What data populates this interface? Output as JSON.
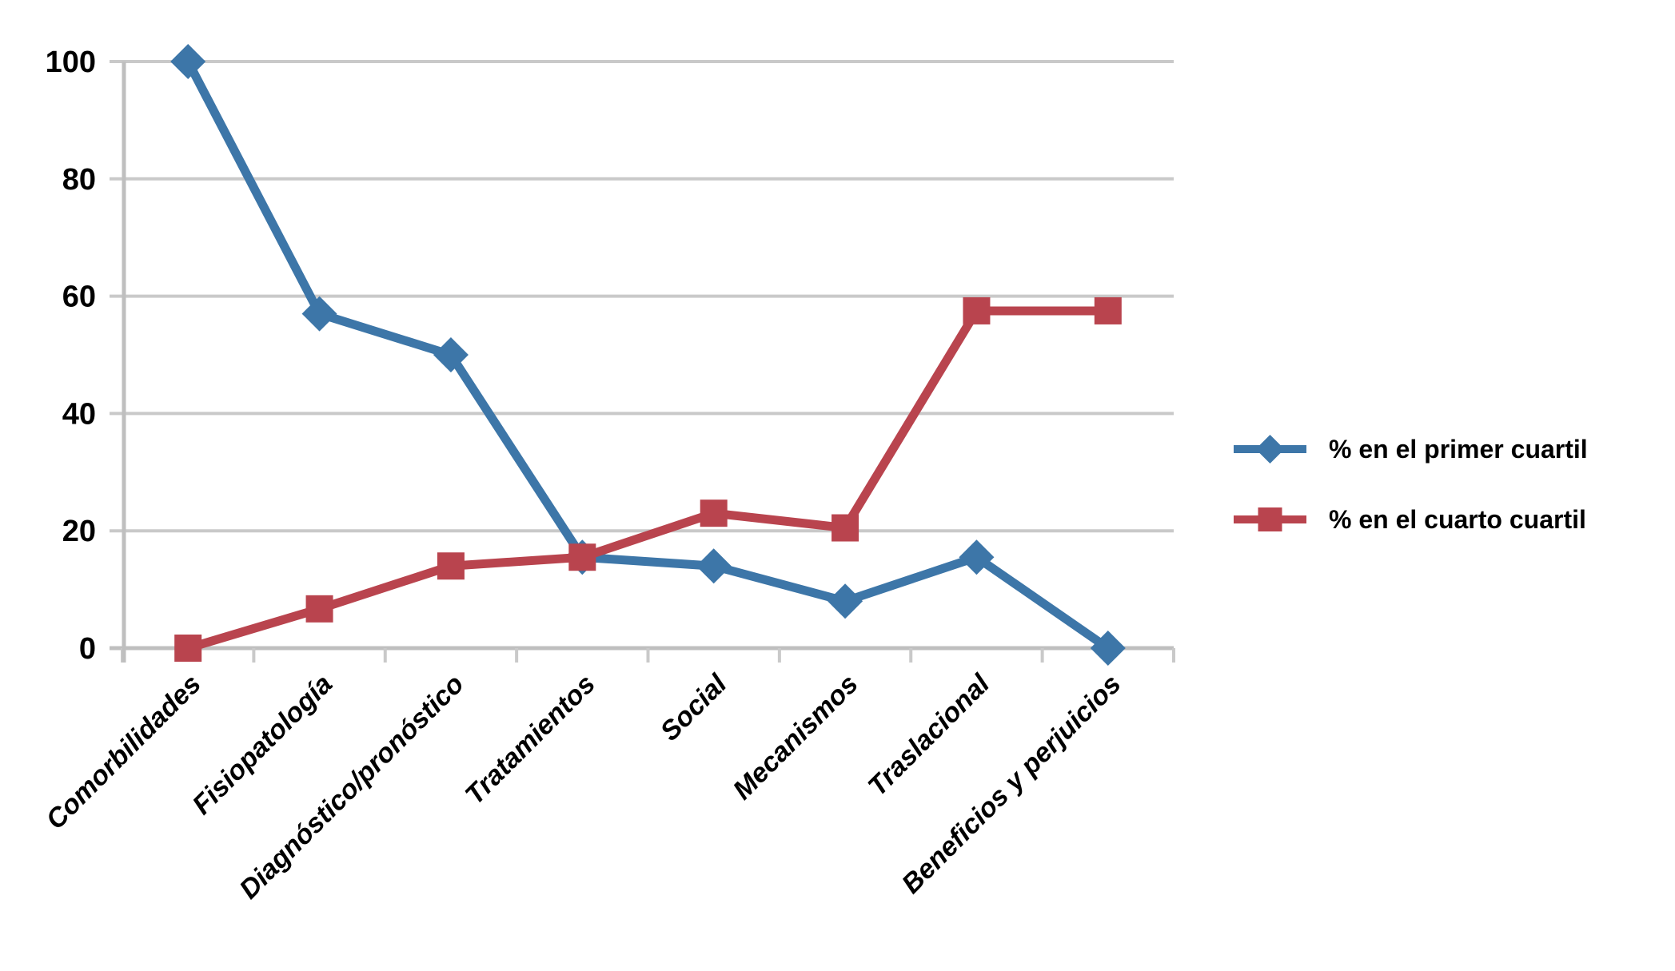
{
  "chart_data": {
    "type": "line",
    "categories": [
      "Comorbilidades",
      "Fisiopatología",
      "Diagnóstico/pronóstico",
      "Tratamientos",
      "Social",
      "Mecanismos",
      "Traslacional",
      "Beneficios y perjuicios"
    ],
    "series": [
      {
        "name": "% en el primer cuartil",
        "color": "#3D76A8",
        "marker": "diamond",
        "values": [
          100,
          57,
          50,
          15.5,
          14,
          8,
          15.5,
          0
        ]
      },
      {
        "name": "% en el cuarto cuartil",
        "color": "#B9444E",
        "marker": "square",
        "values": [
          0,
          6.7,
          14,
          15.5,
          23,
          20.5,
          57.5,
          57.5
        ]
      }
    ],
    "yticks": [
      0,
      20,
      40,
      60,
      80,
      100
    ],
    "ylim": [
      0,
      100
    ],
    "grid": true,
    "legend_position": "right",
    "gridline_color": "#C9C9C9",
    "axis_color": "#BFBFBF",
    "text_color": "#000000",
    "background_color": "#FFFFFF"
  }
}
